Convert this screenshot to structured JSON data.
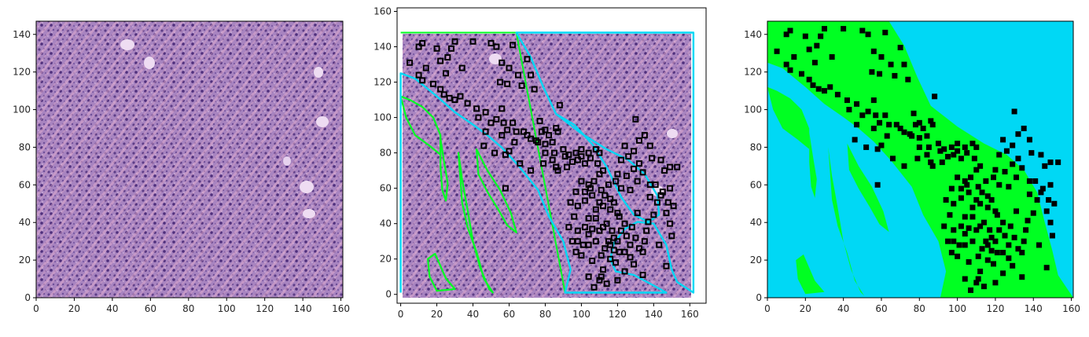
{
  "chart_data": [
    {
      "type": "image",
      "title": "",
      "xlabel": "",
      "ylabel": "",
      "xlim": [
        0,
        161
      ],
      "ylim": [
        0,
        147
      ],
      "xticks": [
        "0",
        "20",
        "40",
        "60",
        "80",
        "100",
        "120",
        "140",
        "160"
      ],
      "yticks": [
        "0",
        "20",
        "40",
        "60",
        "80",
        "100",
        "120",
        "140"
      ],
      "content": "H&E-stained tissue patch (purple/pink)"
    },
    {
      "type": "image-overlay",
      "title": "",
      "xlabel": "",
      "ylabel": "",
      "xlim": [
        -2,
        169
      ],
      "ylim": [
        -5,
        162
      ],
      "xticks": [
        "0",
        "20",
        "40",
        "60",
        "80",
        "100",
        "120",
        "140",
        "160"
      ],
      "yticks": [
        "0",
        "20",
        "40",
        "60",
        "80",
        "100",
        "120",
        "140",
        "160"
      ],
      "contour_colors": {
        "region_a": "#00d8f5",
        "region_b": "#00ff22"
      },
      "point_color": "#000000",
      "cyan_contour": [
        [
          0,
          1
        ],
        [
          0,
          125
        ],
        [
          8,
          122
        ],
        [
          20,
          112
        ],
        [
          30,
          103
        ],
        [
          40,
          96
        ],
        [
          48,
          90
        ],
        [
          56,
          83
        ],
        [
          65,
          73
        ],
        [
          76,
          59
        ],
        [
          82,
          44
        ],
        [
          90,
          30
        ],
        [
          94,
          14
        ],
        [
          91,
          1
        ],
        [
          147,
          1
        ],
        [
          140,
          5
        ],
        [
          129,
          11
        ],
        [
          119,
          13
        ],
        [
          116,
          20
        ],
        [
          118,
          29
        ],
        [
          124,
          37
        ],
        [
          131,
          41
        ],
        [
          140,
          40
        ],
        [
          147,
          28
        ],
        [
          150,
          14
        ],
        [
          153,
          7
        ],
        [
          162,
          1
        ],
        [
          162,
          148
        ],
        [
          64,
          148
        ],
        [
          72,
          134
        ],
        [
          79,
          117
        ],
        [
          86,
          102
        ],
        [
          100,
          91
        ],
        [
          114,
          82
        ],
        [
          126,
          76
        ],
        [
          135,
          68
        ],
        [
          142,
          56
        ],
        [
          143,
          45
        ],
        [
          137,
          41
        ],
        [
          129,
          45
        ],
        [
          122,
          55
        ],
        [
          114,
          72
        ],
        [
          106,
          85
        ],
        [
          96,
          96
        ],
        [
          86,
          102
        ]
      ],
      "green_contours": [
        [
          [
            0,
            112
          ],
          [
            3,
            100
          ],
          [
            8,
            90
          ],
          [
            16,
            84
          ],
          [
            22,
            79
          ],
          [
            22,
            90
          ],
          [
            18,
            100
          ],
          [
            12,
            106
          ],
          [
            5,
            110
          ]
        ],
        [
          [
            22,
            88
          ],
          [
            24,
            75
          ],
          [
            26,
            63
          ],
          [
            25,
            53
          ],
          [
            23,
            59
          ],
          [
            22,
            72
          ]
        ],
        [
          [
            20,
            2
          ],
          [
            16,
            10
          ],
          [
            15,
            20
          ],
          [
            19,
            23
          ],
          [
            22,
            16
          ],
          [
            25,
            9
          ],
          [
            30,
            3
          ]
        ],
        [
          [
            32,
            80
          ],
          [
            34,
            65
          ],
          [
            37,
            48
          ],
          [
            40,
            30
          ],
          [
            44,
            15
          ],
          [
            49,
            3
          ],
          [
            51,
            1
          ],
          [
            46,
            9
          ],
          [
            42,
            24
          ],
          [
            37,
            38
          ],
          [
            34,
            52
          ],
          [
            33,
            66
          ]
        ],
        [
          [
            42,
            82
          ],
          [
            48,
            70
          ],
          [
            55,
            59
          ],
          [
            61,
            46
          ],
          [
            64,
            35
          ],
          [
            59,
            39
          ],
          [
            54,
            48
          ],
          [
            48,
            58
          ],
          [
            43,
            68
          ]
        ]
      ],
      "points": [
        [
          5,
          131
        ],
        [
          10,
          140
        ],
        [
          12,
          142
        ],
        [
          14,
          128
        ],
        [
          10,
          124
        ],
        [
          12,
          121
        ],
        [
          20,
          139
        ],
        [
          22,
          132
        ],
        [
          26,
          134
        ],
        [
          25,
          125
        ],
        [
          28,
          139
        ],
        [
          30,
          143
        ],
        [
          34,
          128
        ],
        [
          40,
          143
        ],
        [
          50,
          142
        ],
        [
          53,
          140
        ],
        [
          56,
          131
        ],
        [
          55,
          120
        ],
        [
          59,
          119
        ],
        [
          62,
          141
        ],
        [
          60,
          128
        ],
        [
          65,
          124
        ],
        [
          67,
          118
        ],
        [
          70,
          133
        ],
        [
          72,
          124
        ],
        [
          74,
          116
        ],
        [
          18,
          119
        ],
        [
          22,
          116
        ],
        [
          24,
          113
        ],
        [
          27,
          111
        ],
        [
          30,
          110
        ],
        [
          33,
          112
        ],
        [
          37,
          108
        ],
        [
          42,
          105
        ],
        [
          43,
          100
        ],
        [
          47,
          103
        ],
        [
          47,
          92
        ],
        [
          50,
          97
        ],
        [
          53,
          99
        ],
        [
          56,
          105
        ],
        [
          57,
          97
        ],
        [
          59,
          93
        ],
        [
          62,
          97
        ],
        [
          56,
          90
        ],
        [
          63,
          86
        ],
        [
          60,
          81
        ],
        [
          58,
          79
        ],
        [
          68,
          92
        ],
        [
          70,
          90
        ],
        [
          72,
          88
        ],
        [
          75,
          87
        ],
        [
          78,
          92
        ],
        [
          77,
          98
        ],
        [
          80,
          93
        ],
        [
          82,
          90
        ],
        [
          86,
          94
        ],
        [
          87,
          92
        ],
        [
          84,
          86
        ],
        [
          85,
          80
        ],
        [
          84,
          76
        ],
        [
          80,
          85
        ],
        [
          80,
          80
        ],
        [
          79,
          74
        ],
        [
          86,
          72
        ],
        [
          87,
          70
        ],
        [
          90,
          82
        ],
        [
          91,
          78
        ],
        [
          93,
          79
        ],
        [
          95,
          75
        ],
        [
          92,
          72
        ],
        [
          97,
          80
        ],
        [
          98,
          76
        ],
        [
          100,
          82
        ],
        [
          100,
          78
        ],
        [
          102,
          74
        ],
        [
          104,
          80
        ],
        [
          105,
          77
        ],
        [
          108,
          82
        ],
        [
          110,
          80
        ],
        [
          109,
          74
        ],
        [
          112,
          70
        ],
        [
          110,
          68
        ],
        [
          105,
          60
        ],
        [
          106,
          56
        ],
        [
          110,
          52
        ],
        [
          112,
          50
        ],
        [
          116,
          48
        ],
        [
          108,
          48
        ],
        [
          104,
          43
        ],
        [
          108,
          43
        ],
        [
          106,
          37
        ],
        [
          102,
          38
        ],
        [
          104,
          34
        ],
        [
          108,
          30
        ],
        [
          110,
          36
        ],
        [
          112,
          38
        ],
        [
          114,
          40
        ],
        [
          117,
          36
        ],
        [
          118,
          32
        ],
        [
          116,
          28
        ],
        [
          120,
          30
        ],
        [
          122,
          36
        ],
        [
          125,
          33
        ],
        [
          124,
          40
        ],
        [
          121,
          44
        ],
        [
          127,
          28
        ],
        [
          130,
          32
        ],
        [
          132,
          26
        ],
        [
          134,
          24
        ],
        [
          135,
          30
        ],
        [
          136,
          36
        ],
        [
          137,
          41
        ],
        [
          140,
          45
        ],
        [
          138,
          55
        ],
        [
          142,
          52
        ],
        [
          145,
          58
        ],
        [
          147,
          46
        ],
        [
          149,
          40
        ],
        [
          150,
          33
        ],
        [
          143,
          28
        ],
        [
          147,
          16
        ],
        [
          134,
          11
        ],
        [
          129,
          17
        ],
        [
          124,
          13
        ],
        [
          119,
          18
        ],
        [
          116,
          20
        ],
        [
          112,
          14
        ],
        [
          110,
          8
        ],
        [
          107,
          4
        ],
        [
          104,
          10
        ],
        [
          111,
          22
        ],
        [
          113,
          26
        ],
        [
          115,
          30
        ],
        [
          97,
          58
        ],
        [
          102,
          53
        ],
        [
          94,
          52
        ],
        [
          96,
          44
        ],
        [
          98,
          36
        ],
        [
          95,
          30
        ],
        [
          97,
          24
        ],
        [
          93,
          38
        ],
        [
          98,
          30
        ],
        [
          100,
          22
        ],
        [
          100,
          64
        ],
        [
          102,
          58
        ],
        [
          104,
          62
        ],
        [
          107,
          64
        ],
        [
          111,
          59
        ],
        [
          113,
          56
        ],
        [
          116,
          54
        ],
        [
          118,
          52
        ],
        [
          120,
          46
        ],
        [
          115,
          62
        ],
        [
          119,
          64
        ],
        [
          122,
          60
        ],
        [
          120,
          68
        ],
        [
          125,
          67
        ],
        [
          127,
          59
        ],
        [
          129,
          71
        ],
        [
          132,
          74
        ],
        [
          134,
          69
        ],
        [
          131,
          64
        ],
        [
          138,
          62
        ],
        [
          141,
          62
        ],
        [
          144,
          56
        ],
        [
          122,
          76
        ],
        [
          126,
          78
        ],
        [
          124,
          84
        ],
        [
          129,
          81
        ],
        [
          132,
          87
        ],
        [
          135,
          90
        ],
        [
          138,
          84
        ],
        [
          139,
          77
        ],
        [
          144,
          76
        ],
        [
          146,
          70
        ],
        [
          149,
          72
        ],
        [
          153,
          72
        ],
        [
          149,
          60
        ],
        [
          148,
          52
        ],
        [
          151,
          50
        ],
        [
          130,
          99
        ],
        [
          88,
          107
        ],
        [
          86,
          72
        ],
        [
          98,
          50
        ],
        [
          76,
          86
        ],
        [
          64,
          92
        ],
        [
          66,
          74
        ],
        [
          58,
          60
        ],
        [
          52,
          80
        ],
        [
          46,
          84
        ],
        [
          72,
          70
        ],
        [
          111,
          10
        ],
        [
          114,
          6
        ],
        [
          120,
          8
        ],
        [
          106,
          19
        ],
        [
          101,
          28
        ],
        [
          104,
          28
        ],
        [
          118,
          25
        ],
        [
          121,
          24
        ],
        [
          127,
          21
        ],
        [
          124,
          24
        ],
        [
          128,
          38
        ],
        [
          131,
          46
        ]
      ]
    },
    {
      "type": "segmentation-map",
      "title": "",
      "xlabel": "",
      "ylabel": "",
      "xlim": [
        0,
        161
      ],
      "ylim": [
        0,
        147
      ],
      "xticks": [
        "0",
        "20",
        "40",
        "60",
        "80",
        "100",
        "120",
        "140",
        "160"
      ],
      "yticks": [
        "0",
        "20",
        "40",
        "60",
        "80",
        "100",
        "120",
        "140"
      ],
      "colors": {
        "background": "#00d8f5",
        "region": "#00ff22",
        "points": "#000000"
      }
    }
  ]
}
